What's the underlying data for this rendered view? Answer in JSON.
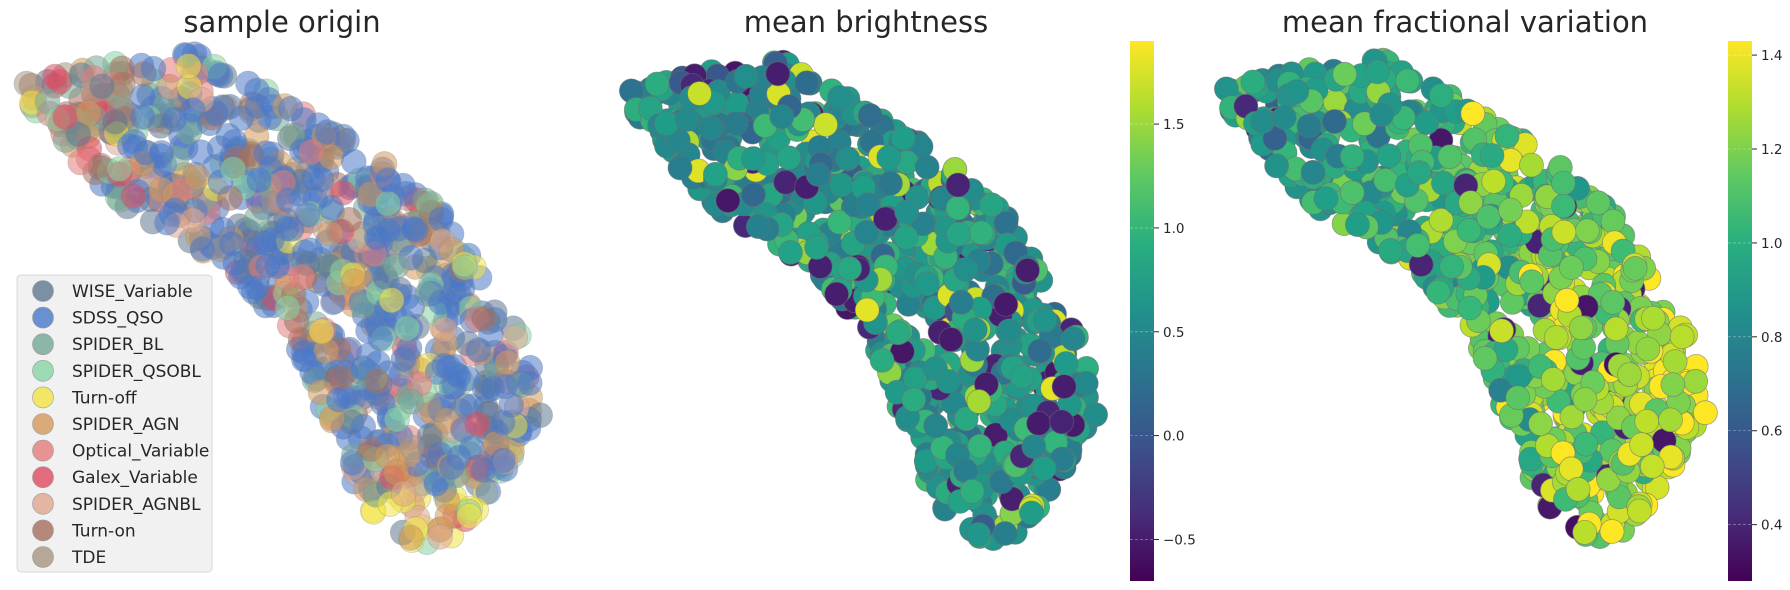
{
  "chart_data": [
    {
      "type": "scatter",
      "title": "sample origin",
      "xlabel": "",
      "ylabel": "",
      "legend": {
        "placement": "lower-left",
        "entries": [
          {
            "name": "WISE_Variable",
            "color": "#5f7891"
          },
          {
            "name": "SDSS_QSO",
            "color": "#4a78c9"
          },
          {
            "name": "SPIDER_BL",
            "color": "#75a896"
          },
          {
            "name": "SPIDER_QSOBL",
            "color": "#86d4a2"
          },
          {
            "name": "Turn-off",
            "color": "#f2e443"
          },
          {
            "name": "SPIDER_AGN",
            "color": "#d4995a"
          },
          {
            "name": "Optical_Variable",
            "color": "#e57c7c"
          },
          {
            "name": "Galex_Variable",
            "color": "#df4a61"
          },
          {
            "name": "SPIDER_AGNBL",
            "color": "#dea890"
          },
          {
            "name": "Turn-on",
            "color": "#a66f5c"
          },
          {
            "name": "TDE",
            "color": "#a69682"
          }
        ]
      }
    },
    {
      "type": "scatter",
      "title": "mean brightness",
      "colorbar": {
        "colormap": "viridis",
        "range": [
          -0.7,
          1.9
        ],
        "ticks": [
          -0.5,
          0.0,
          0.5,
          1.0,
          1.5
        ],
        "tick_labels": [
          "−0.5",
          "0.0",
          "0.5",
          "1.0",
          "1.5"
        ]
      }
    },
    {
      "type": "scatter",
      "title": "mean fractional variation",
      "colorbar": {
        "colormap": "viridis",
        "range": [
          0.28,
          1.43
        ],
        "ticks": [
          0.4,
          0.6,
          0.8,
          1.0,
          1.2,
          1.4
        ],
        "tick_labels": [
          "0.4",
          "0.6",
          "0.8",
          "1.0",
          "1.2",
          "1.4"
        ]
      }
    }
  ]
}
